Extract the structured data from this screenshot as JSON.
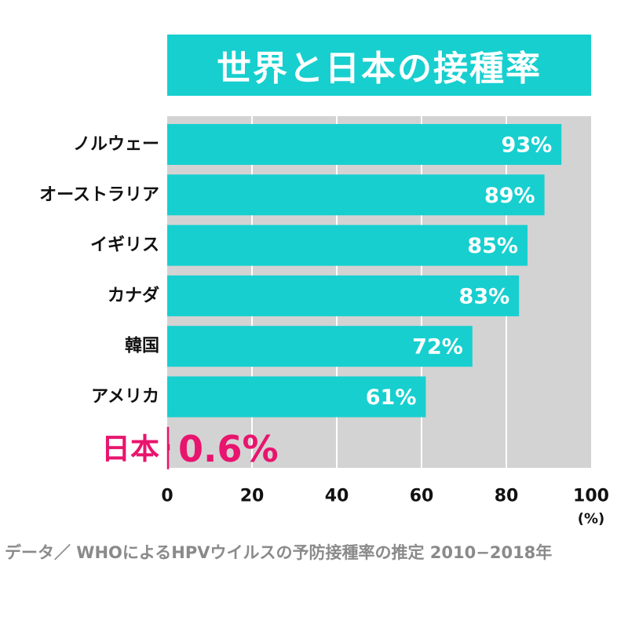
{
  "colors": {
    "title_bg": "#17cfcf",
    "bar": "#17cfcf",
    "plot_bg": "#d3d3d3",
    "grid": "#ffffff",
    "highlight": "#e8146e",
    "source": "#8a8a8a"
  },
  "chart_data": {
    "type": "bar",
    "orientation": "horizontal",
    "title": "世界と日本の接種率",
    "categories": [
      "ノルウェー",
      "オーストラリア",
      "イギリス",
      "カナダ",
      "韓国",
      "アメリカ",
      "日本"
    ],
    "values": [
      93,
      89,
      85,
      83,
      72,
      61,
      0.6
    ],
    "value_labels": [
      "93%",
      "89%",
      "85%",
      "83%",
      "72%",
      "61%",
      "0.6%"
    ],
    "highlight_category": "日本",
    "x_ticks": [
      "0",
      "20",
      "40",
      "60",
      "80",
      "100"
    ],
    "x_tick_values": [
      0,
      20,
      40,
      60,
      80,
      100
    ],
    "xlim": [
      0,
      100
    ],
    "x_unit": "(%)",
    "grid": true,
    "source": "データ／ WHOによるHPVウイルスの予防接種率の推定 2010−2018年"
  }
}
